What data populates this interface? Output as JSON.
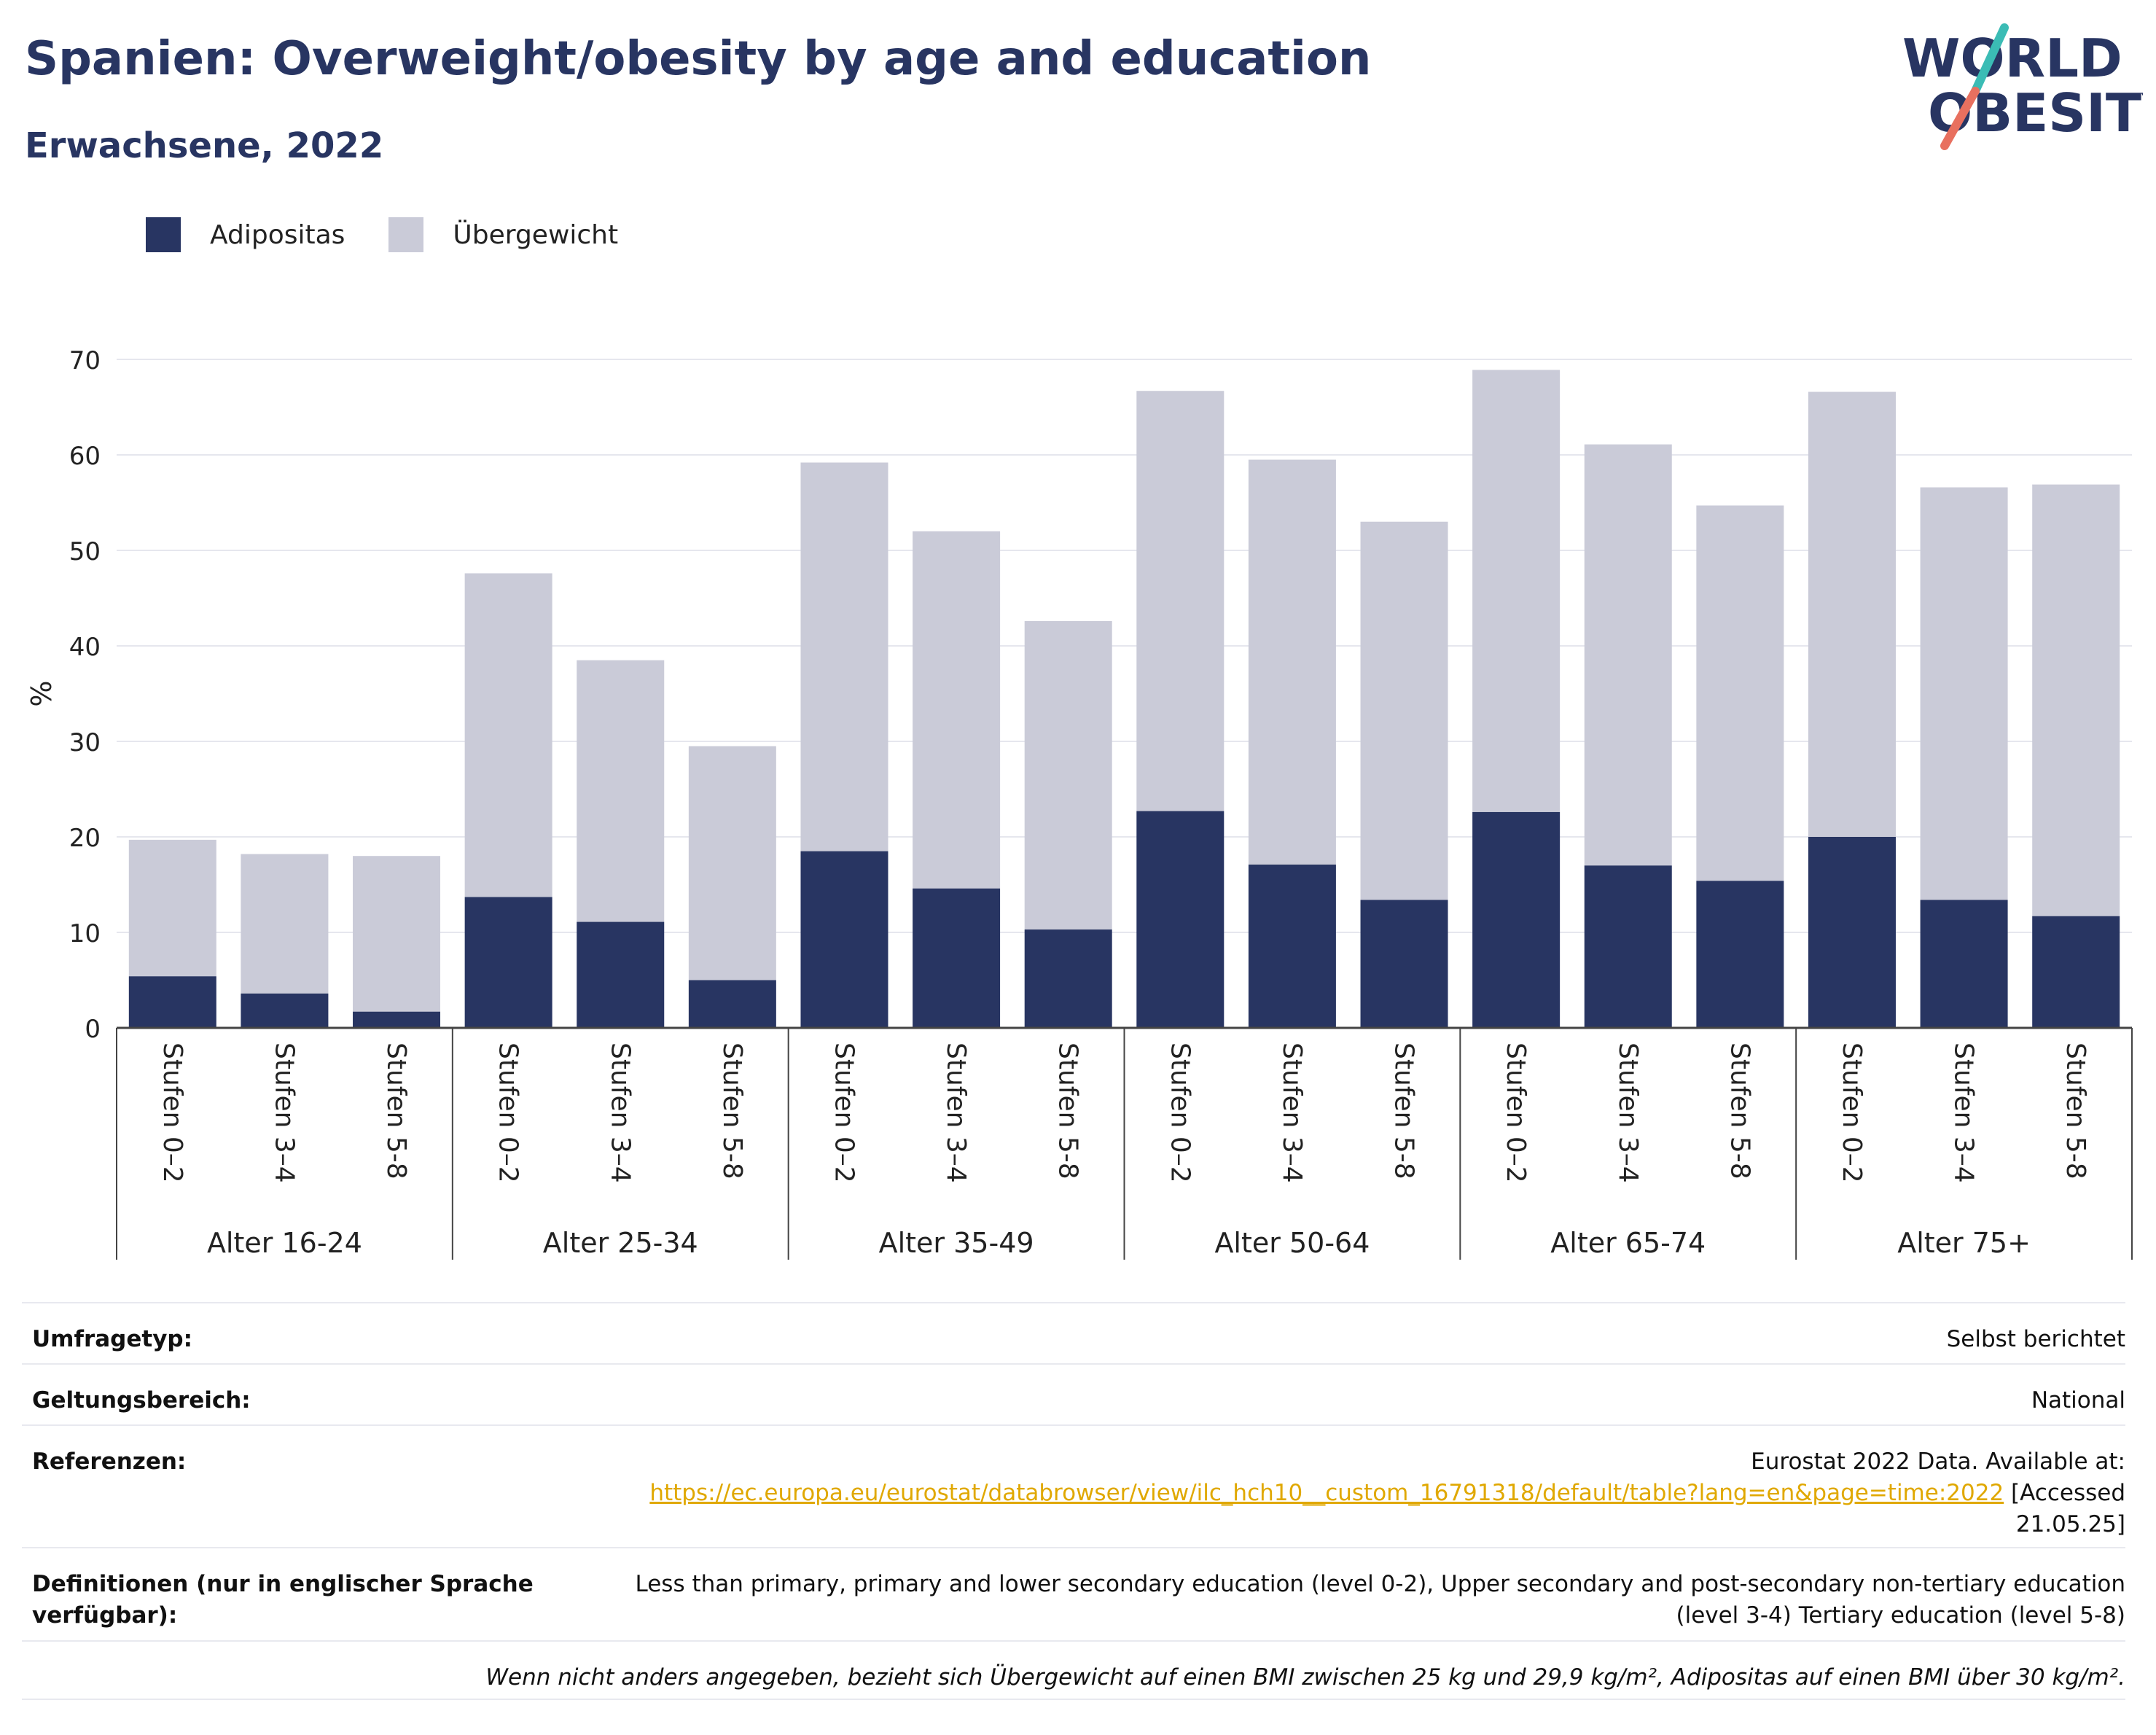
{
  "header": {
    "title": "Spanien: Overweight/obesity by age and education",
    "subtitle": "Erwachsene, 2022",
    "logo_line1": "WORLD",
    "logo_line2": "OBESITY"
  },
  "colors": {
    "obesity": "#283562",
    "overweight": "#cacbd8",
    "logo_slash_teal": "#3bbcb5",
    "logo_slash_coral": "#e8705f",
    "link": "#e0a800"
  },
  "chart_data": {
    "type": "bar",
    "stacked": true,
    "ylabel": "%",
    "ylim": [
      0,
      70
    ],
    "yticks": [
      0,
      10,
      20,
      30,
      40,
      50,
      60,
      70
    ],
    "grid": true,
    "legend_position": "top-left",
    "groups": [
      "Alter 16-24",
      "Alter 25-34",
      "Alter 35-49",
      "Alter 50-64",
      "Alter 65-74",
      "Alter 75+"
    ],
    "subcategories": [
      "Stufen 0–2",
      "Stufen 3–4",
      "Stufen 5-8"
    ],
    "series": [
      {
        "name": "Adipositas",
        "values": [
          5.4,
          3.6,
          1.7,
          13.7,
          11.1,
          5.0,
          18.5,
          14.6,
          10.3,
          22.7,
          17.1,
          13.4,
          22.6,
          17.0,
          15.4,
          20.0,
          13.4,
          11.7
        ]
      },
      {
        "name": "Übergewicht",
        "values": [
          14.3,
          14.6,
          16.3,
          33.9,
          27.4,
          24.5,
          40.7,
          37.4,
          32.3,
          44.0,
          42.4,
          39.6,
          46.3,
          44.1,
          39.3,
          46.6,
          43.2,
          45.2
        ]
      }
    ]
  },
  "info": {
    "survey_type_label": "Umfragetyp:",
    "survey_type_value": "Selbst berichtet",
    "scope_label": "Geltungsbereich:",
    "scope_value": "National",
    "references_label": "Referenzen:",
    "references_text": "Eurostat 2022 Data. Available at:",
    "references_url": "https://ec.europa.eu/eurostat/databrowser/view/ilc_hch10__custom_16791318/default/table?lang=en&page=time:2022",
    "references_accessed": "[Accessed 21.05.25]",
    "definitions_label": "Definitionen (nur in englischer Sprache verfügbar):",
    "definitions_value": "Less than primary, primary and lower secondary education (level 0-2), Upper secondary and post-secondary non-tertiary education (level 3-4) Tertiary education (level 5-8)",
    "note": "Wenn nicht anders angegeben, bezieht sich Übergewicht auf einen BMI zwischen 25 kg und 29,9 kg/m², Adipositas auf einen BMI über 30 kg/m²."
  }
}
